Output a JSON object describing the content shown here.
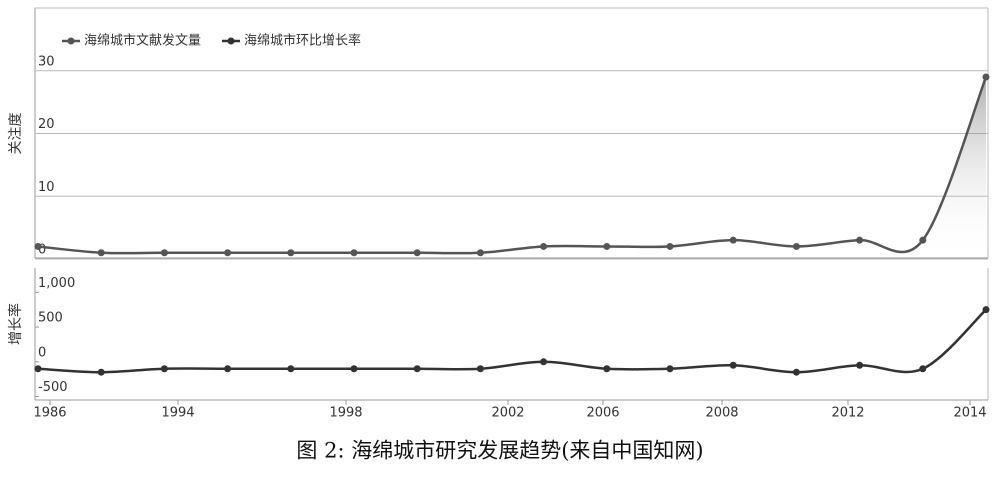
{
  "chart_data": [
    {
      "type": "line",
      "y_label": "关注度",
      "series": [
        {
          "name": "海绵城市文献发文量",
          "color": "#555555",
          "values": [
            2,
            1,
            1,
            1,
            1,
            1,
            1,
            1,
            2,
            2,
            2,
            3,
            2,
            3,
            3,
            29
          ]
        }
      ],
      "ylim": [
        0,
        40
      ],
      "yticks": [
        0,
        10,
        20,
        30
      ],
      "grid": true
    },
    {
      "type": "line",
      "y_label": "增长率",
      "series": [
        {
          "name": "海绵城市环比增长率",
          "color": "#333333",
          "values": [
            -100,
            -150,
            -100,
            -100,
            -100,
            -100,
            -100,
            -100,
            0,
            -100,
            -100,
            -50,
            -150,
            -50,
            -100,
            750
          ]
        }
      ],
      "ylim": [
        -550,
        1350
      ],
      "yticks": [
        -500,
        0,
        500,
        {
          "value": 1000,
          "label": "1,000"
        }
      ],
      "grid": false,
      "xtick_labels": [
        "1986",
        "1994",
        "1998",
        "2002",
        "2006",
        "2008",
        "2012",
        "2014"
      ]
    }
  ],
  "caption": "图 2: 海绵城市研究发展趋势(来自中国知网)"
}
